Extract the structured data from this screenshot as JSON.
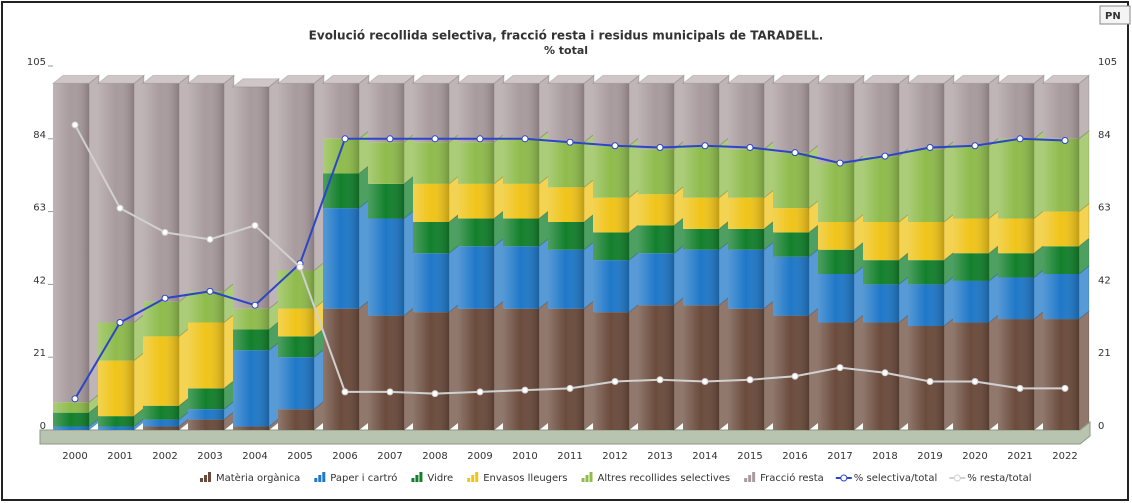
{
  "chart_data": {
    "type": "bar",
    "title": "Evolució recollida selectiva, fracció resta i residus municipals de TARADELL.",
    "subtitle": "% total",
    "export_button": "PN",
    "stacked": true,
    "categories": [
      "2000",
      "2001",
      "2002",
      "2003",
      "2004",
      "2005",
      "2006",
      "2007",
      "2008",
      "2009",
      "2010",
      "2011",
      "2012",
      "2013",
      "2014",
      "2015",
      "2016",
      "2017",
      "2018",
      "2019",
      "2020",
      "2021",
      "2022"
    ],
    "ylim": [
      0,
      105
    ],
    "yticks": [
      0,
      21,
      42,
      63,
      84,
      105
    ],
    "series": [
      {
        "name": "Matèria orgànica",
        "color": "#6b4b3c",
        "values": [
          0,
          0,
          1,
          3,
          1,
          6,
          35,
          33,
          34,
          35,
          35,
          35,
          34,
          36,
          36,
          35,
          33,
          31,
          31,
          30,
          31,
          32,
          32
        ]
      },
      {
        "name": "Paper i cartró",
        "color": "#1f78c8",
        "values": [
          1,
          1,
          2,
          3,
          22,
          15,
          29,
          28,
          17,
          18,
          18,
          17,
          15,
          15,
          16,
          17,
          17,
          14,
          11,
          12,
          12,
          12,
          13
        ]
      },
      {
        "name": "Vidre",
        "color": "#12802c",
        "values": [
          4,
          3,
          4,
          6,
          6,
          6,
          10,
          10,
          9,
          8,
          8,
          8,
          8,
          8,
          6,
          6,
          7,
          7,
          7,
          7,
          8,
          7,
          8
        ]
      },
      {
        "name": "Envasos lleugers",
        "color": "#f0c419",
        "values": [
          0,
          16,
          20,
          19,
          0,
          8,
          0,
          0,
          11,
          10,
          10,
          10,
          10,
          9,
          9,
          9,
          7,
          8,
          11,
          11,
          10,
          10,
          10
        ]
      },
      {
        "name": "Altres recollides selectives",
        "color": "#8fbc4c",
        "values": [
          3,
          11,
          10,
          9,
          6,
          11,
          10,
          12,
          12,
          12,
          13,
          13,
          15,
          13,
          15,
          14,
          16,
          17,
          19,
          21,
          21,
          23,
          21
        ]
      },
      {
        "name": "Fracció resta",
        "color": "#a99b9d",
        "values": [
          92,
          69,
          63,
          60,
          64,
          54,
          16,
          17,
          17,
          17,
          16,
          17,
          18,
          19,
          18,
          19,
          20,
          23,
          21,
          19,
          18,
          16,
          16
        ]
      }
    ],
    "lines": [
      {
        "name": "% selectiva/total",
        "color": "#2b46c8",
        "values": [
          9,
          31,
          38,
          40,
          36,
          48,
          84,
          84,
          84,
          84,
          84,
          83,
          82,
          81.5,
          82,
          81.5,
          80,
          77,
          79,
          81.5,
          82,
          84,
          83.5
        ]
      },
      {
        "name": "% resta/total",
        "color": "#d0d0d0",
        "values": [
          88,
          64,
          57,
          55,
          59,
          47,
          11,
          11,
          10.5,
          11,
          11.5,
          12,
          14,
          14.5,
          14,
          14.5,
          15.5,
          18,
          16.5,
          14,
          14,
          12,
          12
        ]
      }
    ]
  }
}
